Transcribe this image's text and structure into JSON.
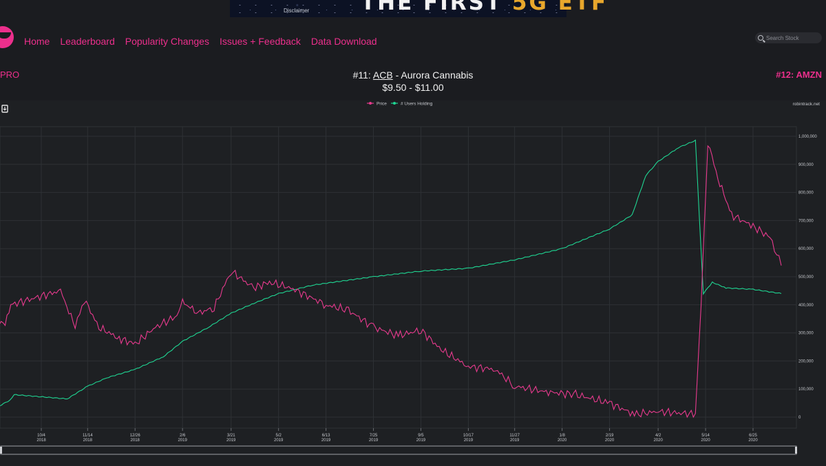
{
  "banner": {
    "disclaimer": "Disclaimer",
    "headline_main": "THE FIRST",
    "headline_accent": "5G ETF"
  },
  "nav": {
    "items": [
      "Home",
      "Leaderboard",
      "Popularity Changes",
      "Issues + Feedback",
      "Data Download"
    ]
  },
  "search": {
    "placeholder": "Search Stock",
    "icon": "search-icon"
  },
  "stock": {
    "prev_label": "PRO",
    "rank_label": "#11:",
    "ticker": "ACB",
    "name": " - Aurora Cannabis",
    "price_range": "$9.50 - $11.00",
    "next_label": "#12: AMZN"
  },
  "colors": {
    "accent": "#ec2f8c",
    "price": "#e83a8e",
    "users": "#1fd693",
    "background": "#1b1c20"
  },
  "chart": {
    "download_icon": "file-download-icon",
    "watermark": "robintrack.net",
    "legend": [
      "Price",
      "# Users Holding"
    ]
  },
  "chart_data": {
    "type": "line",
    "legend_position": "top-center",
    "grid": true,
    "y_ticks": [
      "1,000,000",
      "900,000",
      "800,000",
      "700,000",
      "600,000",
      "500,000",
      "400,000",
      "300,000",
      "200,000",
      "100,000",
      "0"
    ],
    "x_ticks": [
      {
        "date": "10/4",
        "year": "2018"
      },
      {
        "date": "11/14",
        "year": "2018"
      },
      {
        "date": "12/26",
        "year": "2018"
      },
      {
        "date": "2/6",
        "year": "2019"
      },
      {
        "date": "3/21",
        "year": "2019"
      },
      {
        "date": "5/2",
        "year": "2019"
      },
      {
        "date": "6/13",
        "year": "2019"
      },
      {
        "date": "7/25",
        "year": "2019"
      },
      {
        "date": "9/5",
        "year": "2019"
      },
      {
        "date": "10/17",
        "year": "2019"
      },
      {
        "date": "11/27",
        "year": "2019"
      },
      {
        "date": "1/8",
        "year": "2020"
      },
      {
        "date": "2/19",
        "year": "2020"
      },
      {
        "date": "4/2",
        "year": "2020"
      },
      {
        "date": "5/14",
        "year": "2020"
      },
      {
        "date": "6/25",
        "year": "2020"
      }
    ],
    "series": [
      {
        "name": "# Users Holding",
        "axis": "right",
        "points": [
          [
            "2018-08-19",
            20000
          ],
          [
            "2018-09-06",
            60000
          ],
          [
            "2018-09-10",
            80000
          ],
          [
            "2018-10-27",
            65000
          ],
          [
            "2018-11-14",
            110000
          ],
          [
            "2018-12-01",
            140000
          ],
          [
            "2018-12-26",
            170000
          ],
          [
            "2019-01-20",
            215000
          ],
          [
            "2019-02-06",
            270000
          ],
          [
            "2019-03-01",
            320000
          ],
          [
            "2019-03-21",
            370000
          ],
          [
            "2019-04-10",
            405000
          ],
          [
            "2019-05-02",
            440000
          ],
          [
            "2019-06-01",
            470000
          ],
          [
            "2019-07-25",
            500000
          ],
          [
            "2019-09-05",
            520000
          ],
          [
            "2019-10-17",
            530000
          ],
          [
            "2019-11-27",
            560000
          ],
          [
            "2020-01-08",
            600000
          ],
          [
            "2020-02-19",
            670000
          ],
          [
            "2020-03-10",
            720000
          ],
          [
            "2020-03-22",
            860000
          ],
          [
            "2020-04-02",
            910000
          ],
          [
            "2020-04-20",
            960000
          ],
          [
            "2020-05-05",
            985000
          ],
          [
            "2020-05-12",
            440000
          ],
          [
            "2020-05-20",
            480000
          ],
          [
            "2020-06-01",
            460000
          ],
          [
            "2020-06-25",
            455000
          ],
          [
            "2020-07-20",
            440000
          ]
        ]
      },
      {
        "name": "Price",
        "axis": "left",
        "points": [
          [
            "2018-08-19",
            360000
          ],
          [
            "2018-09-02",
            330000
          ],
          [
            "2018-09-07",
            400000
          ],
          [
            "2018-10-21",
            450000
          ],
          [
            "2018-11-03",
            320000
          ],
          [
            "2018-11-11",
            420000
          ],
          [
            "2018-11-24",
            320000
          ],
          [
            "2018-12-12",
            280000
          ],
          [
            "2018-12-26",
            260000
          ],
          [
            "2019-01-13",
            320000
          ],
          [
            "2019-02-01",
            360000
          ],
          [
            "2019-02-06",
            410000
          ],
          [
            "2019-02-20",
            370000
          ],
          [
            "2019-03-06",
            390000
          ],
          [
            "2019-03-21",
            520000
          ],
          [
            "2019-04-10",
            460000
          ],
          [
            "2019-04-24",
            480000
          ],
          [
            "2019-05-13",
            460000
          ],
          [
            "2019-06-13",
            400000
          ],
          [
            "2019-07-03",
            380000
          ],
          [
            "2019-07-25",
            320000
          ],
          [
            "2019-08-16",
            290000
          ],
          [
            "2019-09-05",
            310000
          ],
          [
            "2019-09-23",
            240000
          ],
          [
            "2019-10-17",
            180000
          ],
          [
            "2019-11-10",
            170000
          ],
          [
            "2019-11-27",
            110000
          ],
          [
            "2019-12-25",
            90000
          ],
          [
            "2020-01-20",
            80000
          ],
          [
            "2020-02-19",
            50000
          ],
          [
            "2020-03-12",
            10000
          ],
          [
            "2020-04-02",
            20000
          ],
          [
            "2020-05-05",
            10000
          ],
          [
            "2020-05-10",
            400000
          ],
          [
            "2020-05-16",
            980000
          ],
          [
            "2020-05-25",
            850000
          ],
          [
            "2020-06-06",
            720000
          ],
          [
            "2020-06-25",
            680000
          ],
          [
            "2020-07-10",
            640000
          ],
          [
            "2020-07-20",
            540000
          ]
        ]
      }
    ]
  }
}
